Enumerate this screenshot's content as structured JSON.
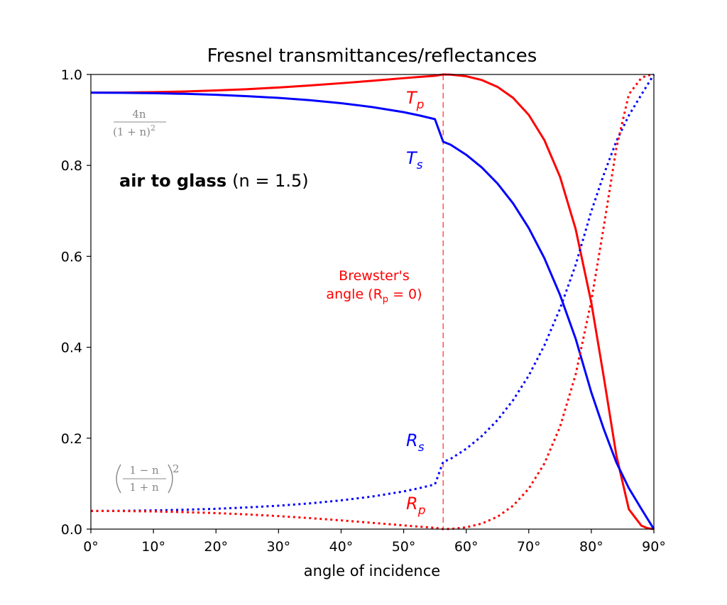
{
  "chart_data": {
    "type": "line",
    "title": "Fresnel transmittances/reflectances",
    "xlabel": "angle of incidence",
    "ylabel": "",
    "xlim": [
      0,
      90
    ],
    "ylim": [
      0,
      1
    ],
    "x_ticks": [
      0,
      10,
      20,
      30,
      40,
      50,
      60,
      70,
      80,
      90
    ],
    "x_tick_labels": [
      "0°",
      "10°",
      "20°",
      "30°",
      "40°",
      "50°",
      "60°",
      "70°",
      "80°",
      "90°"
    ],
    "y_ticks": [
      0,
      0.2,
      0.4,
      0.6,
      0.8,
      1.0
    ],
    "y_tick_labels": [
      "0.0",
      "0.2",
      "0.4",
      "0.6",
      "0.8",
      "1.0"
    ],
    "grid": false,
    "x": [
      0,
      5,
      10,
      15,
      20,
      25,
      30,
      35,
      40,
      45,
      50,
      52.5,
      55,
      56.31,
      57.5,
      60,
      62.5,
      65,
      67.5,
      70,
      72.5,
      75,
      77.5,
      80,
      82,
      84,
      86,
      88,
      89,
      90
    ],
    "series": [
      {
        "name_main": "T",
        "name_sub": "p",
        "color": "#ff0000",
        "style": "solid",
        "values": [
          0.96,
          0.9603,
          0.9611,
          0.9626,
          0.9648,
          0.9677,
          0.9714,
          0.9758,
          0.9808,
          0.9862,
          0.9919,
          0.9946,
          0.9971,
          1.0,
          0.9996,
          0.9961,
          0.9878,
          0.9728,
          0.9485,
          0.9111,
          0.8555,
          0.7749,
          0.6598,
          0.4979,
          0.3339,
          0.1624,
          0.0437,
          0.0076,
          0.0019,
          0.0
        ]
      },
      {
        "name_main": "T",
        "name_sub": "s",
        "color": "#0000ff",
        "style": "solid",
        "values": [
          0.96,
          0.9597,
          0.9589,
          0.9574,
          0.9553,
          0.9523,
          0.9485,
          0.9434,
          0.9368,
          0.9283,
          0.9171,
          0.9099,
          0.9017,
          0.8521,
          0.8456,
          0.8234,
          0.7953,
          0.7602,
          0.7164,
          0.6622,
          0.5958,
          0.5151,
          0.4187,
          0.3007,
          0.2198,
          0.1468,
          0.0901,
          0.0445,
          0.0222,
          0.0
        ]
      },
      {
        "name_main": "R",
        "name_sub": "s",
        "color": "#0000ff",
        "style": "dotted",
        "values": [
          0.04,
          0.0403,
          0.0411,
          0.0426,
          0.0447,
          0.0477,
          0.0515,
          0.0566,
          0.0632,
          0.0717,
          0.0829,
          0.0901,
          0.0983,
          0.1479,
          0.1544,
          0.1766,
          0.2047,
          0.2398,
          0.2836,
          0.3378,
          0.4042,
          0.4849,
          0.5813,
          0.6993,
          0.7802,
          0.8532,
          0.9099,
          0.9555,
          0.9778,
          1.0
        ]
      },
      {
        "name_main": "R",
        "name_sub": "p",
        "color": "#ff0000",
        "style": "dotted",
        "values": [
          0.04,
          0.0397,
          0.0389,
          0.0374,
          0.0352,
          0.0323,
          0.0286,
          0.0242,
          0.0192,
          0.0138,
          0.0081,
          0.0054,
          0.0029,
          0.0,
          0.0004,
          0.0039,
          0.0122,
          0.0272,
          0.0515,
          0.0889,
          0.1445,
          0.2251,
          0.3402,
          0.5021,
          0.6661,
          0.8376,
          0.9563,
          0.9924,
          0.9981,
          1.0
        ]
      }
    ],
    "brewster_angle": 56.31,
    "annotations": {
      "case_bold": "air to glass",
      "case_rest": "(n = 1.5)",
      "brewster_line1": "Brewster's",
      "brewster_line2": "angle (R",
      "brewster_sub": "p",
      "brewster_tail": " = 0)",
      "trans_formula_num": "4n",
      "trans_formula_den": "(1 + n)",
      "trans_formula_sup": "2",
      "refl_formula_num": "1 − n",
      "refl_formula_den": "1 + n",
      "refl_formula_sup": "2"
    },
    "colors": {
      "red": "#ff0000",
      "blue": "#0000ff",
      "formula_gray": "#888888"
    }
  }
}
